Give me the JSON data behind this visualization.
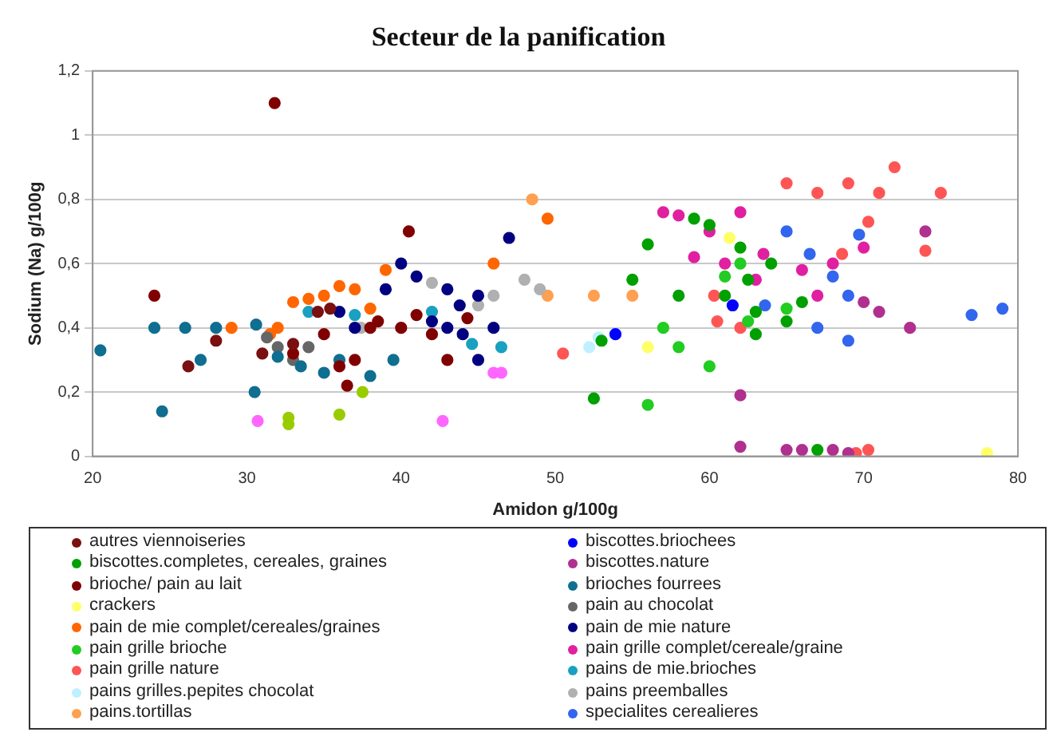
{
  "chart_data": {
    "type": "scatter",
    "title": "Secteur de la panification",
    "xlabel": "Amidon g/100g",
    "ylabel": "Sodium (Na) g/100g",
    "xlim": [
      20,
      80
    ],
    "xticks": [
      20,
      30,
      40,
      50,
      60,
      70,
      80
    ],
    "ylim": [
      0,
      1.2
    ],
    "yticks": [
      0,
      {
        "value": 0.2,
        "label": "0,2"
      },
      {
        "value": 0.4,
        "label": "0,4"
      },
      {
        "value": 0.6,
        "label": "0,6"
      },
      {
        "value": 0.8,
        "label": "0,8"
      },
      1,
      {
        "value": 1.2,
        "label": "1,2"
      }
    ],
    "grid": "y",
    "legend": "bottom",
    "marker": "circle",
    "series": [
      {
        "name": "autres viennoiseries",
        "color": "#7a1010",
        "x": [
          26.2,
          28,
          31,
          33,
          34.6,
          35.4
        ],
        "values": [
          0.28,
          0.36,
          0.32,
          0.35,
          0.45,
          0.46
        ]
      },
      {
        "name": "biscottes.briochees",
        "color": "#0000ff",
        "x": [
          53.9,
          61.5
        ],
        "values": [
          0.38,
          0.47
        ]
      },
      {
        "name": "biscottes.completes, cereales, graines",
        "color": "#00a000",
        "x": [
          52.5,
          53,
          55,
          56,
          58,
          59,
          60,
          61,
          62,
          62.5,
          63,
          63,
          64,
          65,
          66,
          67
        ],
        "values": [
          0.18,
          0.36,
          0.55,
          0.66,
          0.5,
          0.74,
          0.72,
          0.5,
          0.65,
          0.55,
          0.45,
          0.38,
          0.6,
          0.42,
          0.48,
          0.02
        ]
      },
      {
        "name": "biscottes.nature",
        "color": "#b03090",
        "x": [
          62,
          62,
          65,
          66,
          68,
          69,
          70,
          71,
          73,
          74
        ],
        "values": [
          0.19,
          0.03,
          0.02,
          0.02,
          0.02,
          0.01,
          0.48,
          0.45,
          0.4,
          0.7
        ]
      },
      {
        "name": "brioche/ pain au lait",
        "color": "#800000",
        "x": [
          24,
          31.8,
          33,
          35,
          36,
          36.5,
          37,
          38,
          38.5,
          40,
          40.5,
          41,
          42,
          43,
          44.3
        ],
        "values": [
          0.5,
          1.1,
          0.32,
          0.38,
          0.28,
          0.22,
          0.3,
          0.4,
          0.42,
          0.4,
          0.7,
          0.44,
          0.38,
          0.3,
          0.43
        ]
      },
      {
        "name": "brioches fourrees",
        "color": "#106e90",
        "x": [
          20.5,
          24,
          24.5,
          26,
          27,
          28,
          30.5,
          30.6,
          32,
          33.5,
          35,
          36,
          38,
          39.5
        ],
        "values": [
          0.33,
          0.4,
          0.14,
          0.4,
          0.3,
          0.4,
          0.2,
          0.41,
          0.31,
          0.28,
          0.26,
          0.3,
          0.25,
          0.3
        ]
      },
      {
        "name": "crackers",
        "color": "#ffff66",
        "x": [
          56,
          61.3,
          78
        ],
        "values": [
          0.34,
          0.68,
          0.01
        ]
      },
      {
        "name": "pain au chocolat",
        "color": "#666666",
        "x": [
          31.3,
          32,
          33,
          34
        ],
        "values": [
          0.37,
          0.34,
          0.3,
          0.34
        ]
      },
      {
        "name": "pain de mie complet/cereales/graines",
        "color": "#ff6600",
        "x": [
          29,
          31.5,
          32,
          33,
          34,
          35,
          36,
          37,
          38,
          39,
          46,
          49.5
        ],
        "values": [
          0.4,
          0.38,
          0.4,
          0.48,
          0.49,
          0.5,
          0.53,
          0.52,
          0.46,
          0.58,
          0.6,
          0.74
        ]
      },
      {
        "name": "pain de mie nature",
        "color": "#000080",
        "x": [
          36,
          37,
          39,
          40,
          41,
          42,
          43,
          43,
          43.8,
          44,
          45,
          45,
          46,
          47
        ],
        "values": [
          0.45,
          0.4,
          0.52,
          0.6,
          0.56,
          0.42,
          0.52,
          0.4,
          0.47,
          0.38,
          0.5,
          0.3,
          0.4,
          0.68
        ]
      },
      {
        "name": "pain grille brioche",
        "color": "#22cc22",
        "colors": [
          "#22cc22",
          "#22cc22",
          "#22cc22",
          "#22cc22",
          "#22cc22",
          "#22cc22",
          "#22cc22",
          "#22cc22",
          "#99cc00",
          "#99cc00",
          "#99cc00",
          "#99cc00"
        ],
        "x": [
          56,
          57,
          58,
          60,
          61,
          62,
          62.5,
          65,
          32.7,
          32.7,
          36,
          37.5
        ],
        "values": [
          0.16,
          0.4,
          0.34,
          0.28,
          0.56,
          0.6,
          0.42,
          0.46,
          0.1,
          0.12,
          0.13,
          0.2
        ]
      },
      {
        "name": "pain grille complet/cereale/graine",
        "color": "#e020a0",
        "colors": [
          "#e020a0",
          "#e020a0",
          "#e020a0",
          "#e020a0",
          "#e020a0",
          "#e020a0",
          "#e020a0",
          "#e020a0",
          "#e020a0",
          "#e020a0",
          "#e020a0",
          "#e020a0",
          "#ff66ff",
          "#ff66ff",
          "#ff66ff",
          "#ff66ff"
        ],
        "x": [
          57,
          58,
          59,
          60,
          61,
          62,
          63,
          63.5,
          66,
          67,
          68,
          70,
          30.7,
          42.7,
          46,
          46.5
        ],
        "values": [
          0.76,
          0.75,
          0.62,
          0.7,
          0.6,
          0.76,
          0.55,
          0.63,
          0.58,
          0.5,
          0.6,
          0.65,
          0.11,
          0.11,
          0.26,
          0.26
        ]
      },
      {
        "name": "pain grille nature",
        "color": "#ff5555",
        "x": [
          50.5,
          60.5,
          60.3,
          62,
          65,
          67,
          68.6,
          69,
          69.5,
          70.3,
          70.3,
          71,
          72,
          74,
          75
        ],
        "values": [
          0.32,
          0.42,
          0.5,
          0.4,
          0.85,
          0.82,
          0.63,
          0.85,
          0.01,
          0.02,
          0.73,
          0.82,
          0.9,
          0.64,
          0.82
        ]
      },
      {
        "name": "pains de mie.brioches",
        "color": "#1aa0c0",
        "x": [
          34,
          37,
          42,
          44.6,
          46.5
        ],
        "values": [
          0.45,
          0.44,
          0.45,
          0.35,
          0.34
        ]
      },
      {
        "name": "pains grilles.pepites chocolat",
        "color": "#c0f0ff",
        "x": [
          52.2,
          52.8
        ],
        "values": [
          0.34,
          0.37
        ]
      },
      {
        "name": "pains preemballes",
        "color": "#b0b0b0",
        "x": [
          37.4,
          42,
          45,
          46,
          48,
          49
        ],
        "values": [
          0.4,
          0.54,
          0.47,
          0.5,
          0.55,
          0.52
        ]
      },
      {
        "name": "pains.tortillas",
        "color": "#ffa050",
        "x": [
          48.5,
          49.5,
          52.5,
          55
        ],
        "values": [
          0.8,
          0.5,
          0.5,
          0.5
        ]
      },
      {
        "name": "specialites cerealieres",
        "color": "#3366ee",
        "x": [
          63.6,
          65,
          66.5,
          67,
          68,
          69,
          69,
          69.7,
          77,
          79
        ],
        "values": [
          0.47,
          0.7,
          0.63,
          0.4,
          0.56,
          0.5,
          0.36,
          0.69,
          0.44,
          0.46
        ]
      }
    ]
  }
}
